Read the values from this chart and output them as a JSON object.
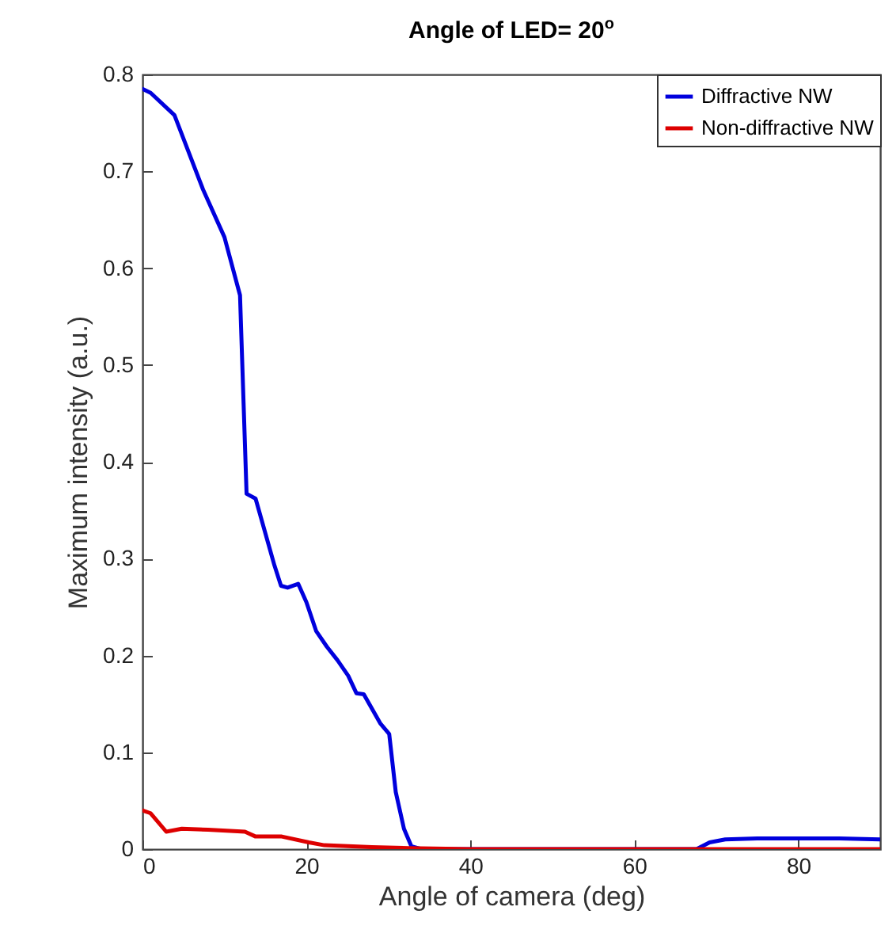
{
  "chart_data": {
    "type": "line",
    "title": "Angle of LED= 20$^{o}$",
    "xlabel": "Angle of camera (deg)",
    "ylabel": "Maximum intensity (a.u.)",
    "xlim": [
      0,
      90
    ],
    "xticks": [
      0,
      20,
      40,
      60,
      80
    ],
    "ylim": [
      0,
      0.8
    ],
    "yticks": [
      0,
      0.1,
      0.2,
      0.3,
      0.4,
      0.5,
      0.6,
      0.7,
      0.8
    ],
    "grid": false,
    "legend": "top right",
    "line_style": "solid",
    "marker": "none",
    "series": [
      {
        "name": "Diffractive NW",
        "color": "#0000dd",
        "x": [
          0,
          1,
          3.9,
          7.4,
          10,
          11.9,
          12.7,
          13.8,
          16.1,
          16.9,
          17.7,
          19,
          20,
          21.2,
          22.5,
          23.8,
          25.1,
          26.1,
          27,
          29,
          30.1,
          30.9,
          31.9,
          32.8,
          34,
          40,
          50,
          60,
          67.6,
          69.2,
          71.1,
          75,
          80,
          85,
          90
        ],
        "values": [
          0.785,
          0.781,
          0.758,
          0.681,
          0.632,
          0.572,
          0.367,
          0.362,
          0.293,
          0.272,
          0.27,
          0.274,
          0.255,
          0.225,
          0.209,
          0.195,
          0.179,
          0.161,
          0.16,
          0.13,
          0.119,
          0.059,
          0.021,
          0.003,
          0,
          0,
          0,
          0,
          0,
          0.007,
          0.01,
          0.011,
          0.011,
          0.011,
          0.01
        ]
      },
      {
        "name": "Non-diffractive NW",
        "color": "#dd0000",
        "x": [
          0,
          1,
          2.9,
          4.8,
          8,
          12.5,
          13.8,
          17,
          20.3,
          22.2,
          28,
          32.5,
          40,
          60,
          80,
          90
        ],
        "values": [
          0.04,
          0.037,
          0.018,
          0.021,
          0.02,
          0.018,
          0.013,
          0.013,
          0.007,
          0.004,
          0.002,
          0.001,
          0,
          0,
          0,
          0
        ]
      }
    ]
  }
}
